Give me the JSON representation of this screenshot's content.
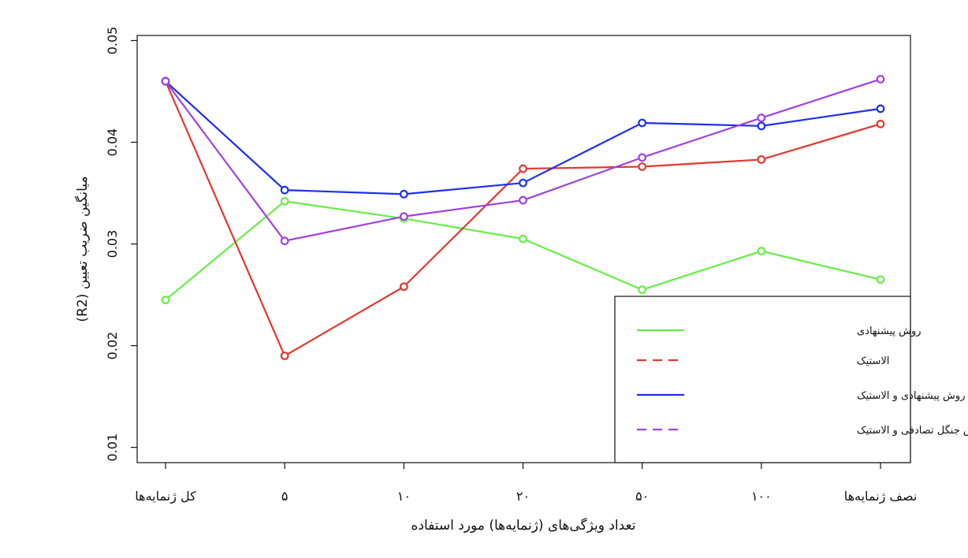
{
  "chart_data": {
    "type": "line",
    "title": "",
    "xlabel": "تعداد ویژگی‌های (ژنمایه‌ها) مورد استفاده",
    "ylabel": "میانگین ضریب تعیین (R2)",
    "categories": [
      "کل ژنمایه‌ها",
      "۵",
      "۱۰",
      "۲۰",
      "۵۰",
      "۱۰۰",
      "نصف ژنمایه‌ها"
    ],
    "ylim": [
      0.0085,
      0.0505
    ],
    "yticks": [
      0.01,
      0.02,
      0.03,
      0.04,
      0.05
    ],
    "ytick_labels": [
      "0.01",
      "0.02",
      "0.03",
      "0.04",
      "0.05"
    ],
    "grid": false,
    "legend_position": "bottom-right",
    "series": [
      {
        "name": "روش پیشنهادی",
        "color": "#66EE44",
        "legend_dash": false,
        "values": [
          0.0245,
          0.0342,
          0.0325,
          0.0305,
          0.0255,
          0.0293,
          0.0265
        ]
      },
      {
        "name": "الاستیک",
        "color": "#E0382E",
        "legend_dash": true,
        "values": [
          0.046,
          0.019,
          0.0258,
          0.0374,
          0.0376,
          0.0383,
          0.0418
        ]
      },
      {
        "name": "ترکیب روش پیشنهادی  و الاستیک",
        "color": "#1C2FEE",
        "legend_dash": false,
        "values": [
          0.046,
          0.0353,
          0.0349,
          0.036,
          0.0419,
          0.0416,
          0.0433
        ]
      },
      {
        "name": "ترکیب روش جنگل تصادفی  و الاستیک",
        "color": "#A040E0",
        "legend_dash": true,
        "values": [
          0.046,
          0.0303,
          0.0327,
          0.0343,
          0.0385,
          0.0424,
          0.0462
        ]
      }
    ]
  }
}
